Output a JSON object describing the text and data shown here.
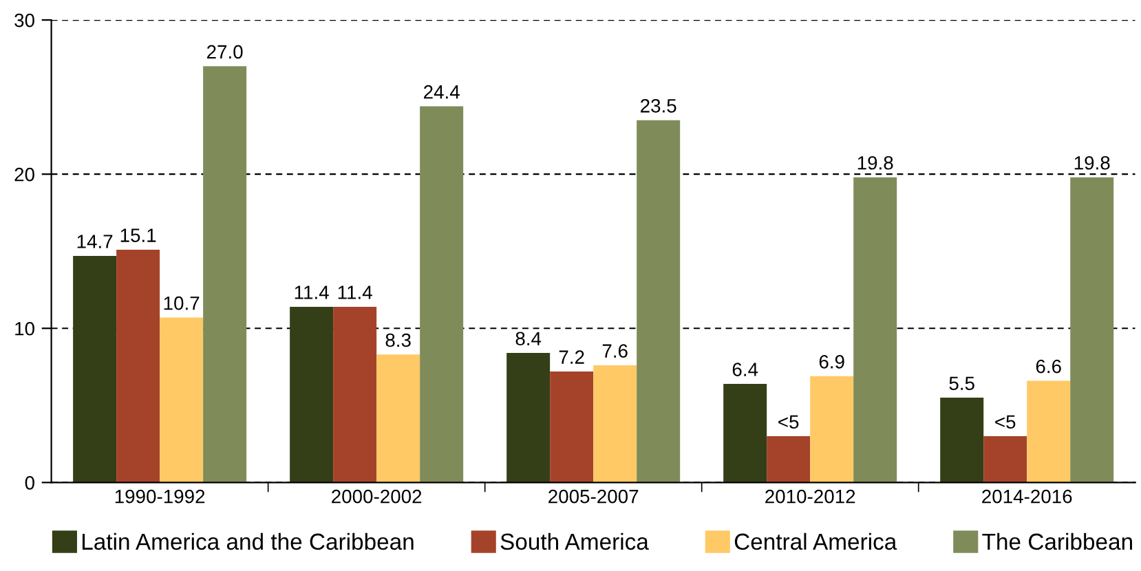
{
  "chart_data": {
    "type": "bar",
    "categories": [
      "1990-1992",
      "2000-2002",
      "2005-2007",
      "2010-2012",
      "2014-2016"
    ],
    "series": [
      {
        "name": "Latin America and the Caribbean",
        "color": "#343f17",
        "values": [
          14.7,
          11.4,
          8.4,
          6.4,
          5.5
        ],
        "value_labels": [
          "14.7",
          "11.4",
          "8.4",
          "6.4",
          "5.5"
        ]
      },
      {
        "name": "South America",
        "color": "#a5432a",
        "values": [
          15.1,
          11.4,
          7.2,
          3.0,
          3.0
        ],
        "value_labels": [
          "15.1",
          "11.4",
          "7.2",
          "<5",
          "<5"
        ]
      },
      {
        "name": "Central America",
        "color": "#ffc966",
        "values": [
          10.7,
          8.3,
          7.6,
          6.9,
          6.6
        ],
        "value_labels": [
          "10.7",
          "8.3",
          "7.6",
          "6.9",
          "6.6"
        ]
      },
      {
        "name": "The Caribbean",
        "color": "#7f8c5a",
        "values": [
          27.0,
          24.4,
          23.5,
          19.8,
          19.8
        ],
        "value_labels": [
          "27.0",
          "24.4",
          "23.5",
          "19.8",
          "19.8"
        ]
      }
    ],
    "ylim": [
      0,
      30
    ],
    "yticks": [
      0,
      10,
      20,
      30
    ],
    "grid": "y",
    "legend": "bottom"
  }
}
